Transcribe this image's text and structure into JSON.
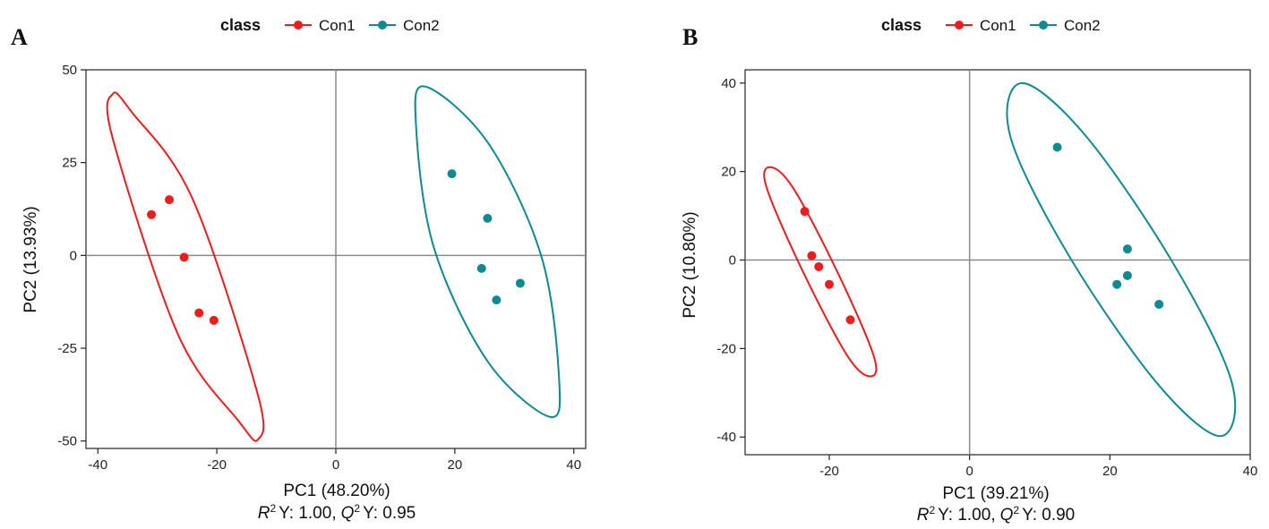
{
  "chart_data": [
    {
      "type": "scatter",
      "panel_label": "A",
      "legend_title": "class",
      "xlabel": "PC1 (48.20%)",
      "ylabel": "PC2 (13.93%)",
      "stats": {
        "r2_label": "R",
        "r2_value": "Y: 1.00,",
        "q2_label": "Q",
        "q2_value": "Y: 0.95",
        "sup": "2"
      },
      "xlim": [
        -42,
        42
      ],
      "ylim": [
        -52,
        50
      ],
      "xticks": [
        -40,
        -20,
        0,
        20,
        40
      ],
      "yticks": [
        50,
        25,
        0,
        -25,
        -50
      ],
      "series": [
        {
          "name": "Con1",
          "color": "#ee1c1c",
          "points": [
            [
              -31,
              11
            ],
            [
              -28,
              15
            ],
            [
              -25.5,
              -0.5
            ],
            [
              -23,
              -15.5
            ],
            [
              -20.5,
              -17.5
            ]
          ],
          "ellipse_path": [
            [
              -37.5,
              43.5
            ],
            [
              -34.3,
              38.6
            ],
            [
              -24.1,
              15.3
            ],
            [
              -13.1,
              -37.6
            ],
            [
              -13.1,
              -49.6
            ],
            [
              -16.3,
              -44.7
            ],
            [
              -26.5,
              -21.4
            ],
            [
              -37.5,
              31.5
            ]
          ]
        },
        {
          "name": "Con2",
          "color": "#0e8a92",
          "points": [
            [
              19.5,
              22
            ],
            [
              25.5,
              10
            ],
            [
              24.5,
              -3.5
            ],
            [
              31,
              -7.5
            ],
            [
              27,
              -12
            ]
          ],
          "ellipse_path": [
            [
              15,
              45.5
            ],
            [
              25.5,
              30.5
            ],
            [
              34.5,
              0
            ],
            [
              37.5,
              -32.5
            ],
            [
              36,
              -43.5
            ],
            [
              25.5,
              -28.5
            ],
            [
              16.5,
              2
            ],
            [
              13.5,
              34.5
            ]
          ]
        }
      ]
    },
    {
      "type": "scatter",
      "panel_label": "B",
      "legend_title": "class",
      "xlabel": "PC1 (39.21%)",
      "ylabel": "PC2 (10.80%)",
      "stats": {
        "r2_label": "R",
        "r2_value": "Y: 1.00,",
        "q2_label": "Q",
        "q2_value": "Y: 0.90",
        "sup": "2"
      },
      "xlim": [
        -32,
        40
      ],
      "ylim": [
        -44,
        43
      ],
      "xticks": [
        -20,
        0,
        20,
        40
      ],
      "yticks": [
        40,
        20,
        0,
        -20,
        -40
      ],
      "series": [
        {
          "name": "Con1",
          "color": "#ee1c1c",
          "points": [
            [
              -23.5,
              11
            ],
            [
              -22.5,
              1
            ],
            [
              -21.5,
              -1.5
            ],
            [
              -20,
              -5.5
            ],
            [
              -17,
              -13.5
            ]
          ],
          "ellipse_path": [
            [
              -28.5,
              21
            ],
            [
              -25.2,
              16.4
            ],
            [
              -18.9,
              -2.5
            ],
            [
              -13.7,
              -21.5
            ],
            [
              -14.1,
              -26.3
            ],
            [
              -17.4,
              -21.7
            ],
            [
              -23.7,
              -2.8
            ],
            [
              -28.9,
              16.2
            ]
          ]
        },
        {
          "name": "Con2",
          "color": "#0e8a92",
          "points": [
            [
              12.5,
              25.5
            ],
            [
              22.5,
              2.5
            ],
            [
              22.5,
              -3.5
            ],
            [
              21,
              -5.5
            ],
            [
              27,
              -10
            ]
          ],
          "ellipse_path": [
            [
              7.5,
              40
            ],
            [
              16.7,
              27.8
            ],
            [
              29.2,
              -1.2
            ],
            [
              37.4,
              -27.8
            ],
            [
              35.7,
              -39.8
            ],
            [
              26.6,
              -27.6
            ],
            [
              14,
              1.4
            ],
            [
              5.8,
              28
            ]
          ]
        }
      ]
    }
  ]
}
